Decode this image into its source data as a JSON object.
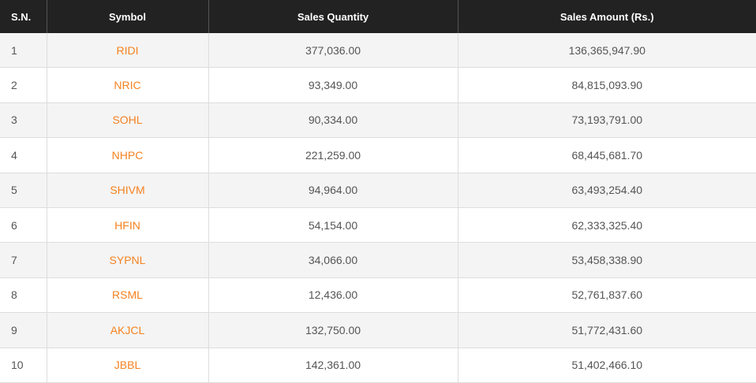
{
  "table": {
    "headers": [
      "S.N.",
      "Symbol",
      "Sales Quantity",
      "Sales Amount (Rs.)"
    ],
    "accent_color": "#f58220",
    "header_bg": "#222222",
    "rows": [
      {
        "sn": "1",
        "symbol": "RIDI",
        "qty": "377,036.00",
        "amount": "136,365,947.90"
      },
      {
        "sn": "2",
        "symbol": "NRIC",
        "qty": "93,349.00",
        "amount": "84,815,093.90"
      },
      {
        "sn": "3",
        "symbol": "SOHL",
        "qty": "90,334.00",
        "amount": "73,193,791.00"
      },
      {
        "sn": "4",
        "symbol": "NHPC",
        "qty": "221,259.00",
        "amount": "68,445,681.70"
      },
      {
        "sn": "5",
        "symbol": "SHIVM",
        "qty": "94,964.00",
        "amount": "63,493,254.40"
      },
      {
        "sn": "6",
        "symbol": "HFIN",
        "qty": "54,154.00",
        "amount": "62,333,325.40"
      },
      {
        "sn": "7",
        "symbol": "SYPNL",
        "qty": "34,066.00",
        "amount": "53,458,338.90"
      },
      {
        "sn": "8",
        "symbol": "RSML",
        "qty": "12,436.00",
        "amount": "52,761,837.60"
      },
      {
        "sn": "9",
        "symbol": "AKJCL",
        "qty": "132,750.00",
        "amount": "51,772,431.60"
      },
      {
        "sn": "10",
        "symbol": "JBBL",
        "qty": "142,361.00",
        "amount": "51,402,466.10"
      }
    ]
  }
}
